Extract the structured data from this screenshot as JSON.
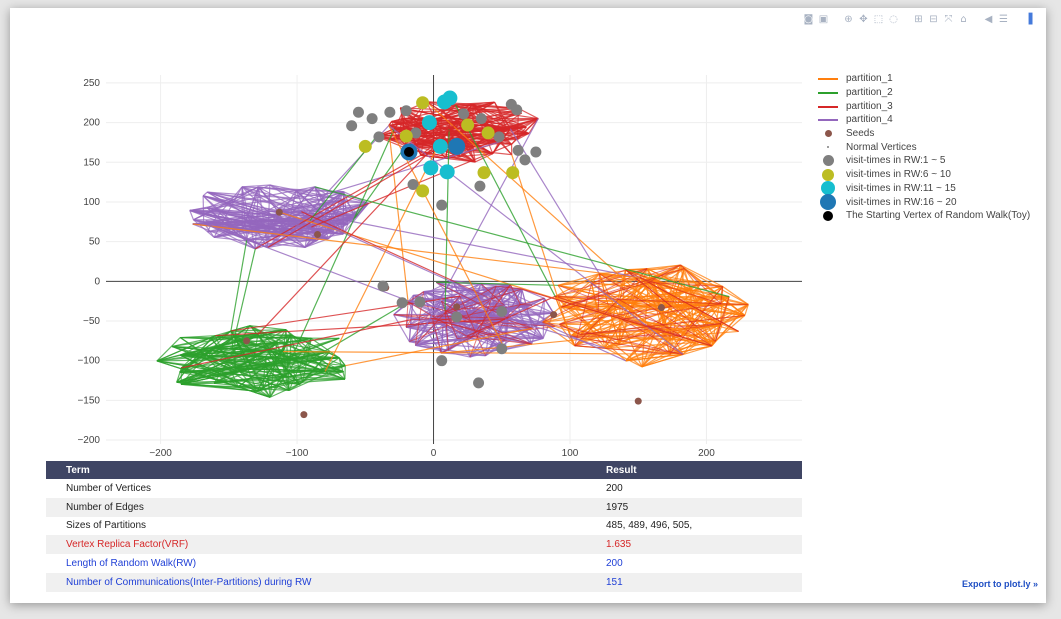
{
  "modebar": {
    "buttons": [
      "camera-icon",
      "save-icon",
      "zoom-icon",
      "pan-icon",
      "box-select-icon",
      "lasso-icon",
      "zoom-in-icon",
      "zoom-out-icon",
      "autoscale-icon",
      "home-icon",
      "spike-lines-icon",
      "hover-compare-icon",
      "plotly-logo-icon"
    ]
  },
  "chart_data": {
    "type": "scatter",
    "xlim": [
      -240,
      270
    ],
    "ylim": [
      -205,
      260
    ],
    "x_ticks": [
      -200,
      -100,
      0,
      100,
      200
    ],
    "y_ticks": [
      -200,
      -150,
      -100,
      -50,
      0,
      50,
      100,
      150,
      200,
      250
    ],
    "x_tick_labels": [
      "−200",
      "−100",
      "0",
      "100",
      "200"
    ],
    "y_tick_labels": [
      "−200",
      "−150",
      "−100",
      "−50",
      "0",
      "50",
      "100",
      "150",
      "200",
      "250"
    ],
    "grid": true,
    "legend_position": "right",
    "clusters": [
      {
        "name": "partition_3",
        "color": "#d62728",
        "cx": 18,
        "cy": 190,
        "rx": 60,
        "ry": 40
      },
      {
        "name": "partition_4",
        "color": "#9467bd",
        "cx": -115,
        "cy": 82,
        "rx": 70,
        "ry": 42
      },
      {
        "name": "partition_2",
        "color": "#2ca02c",
        "cx": -130,
        "cy": -100,
        "rx": 75,
        "ry": 45
      },
      {
        "name": "partition_4",
        "color": "#9467bd",
        "cx": 30,
        "cy": -45,
        "rx": 60,
        "ry": 50
      },
      {
        "name": "partition_1",
        "color": "#ff7f0e",
        "cx": 155,
        "cy": -40,
        "rx": 75,
        "ry": 65
      }
    ],
    "seeds": [
      [
        -113,
        87
      ],
      [
        -85,
        59
      ],
      [
        -137,
        -75
      ],
      [
        -95,
        -168
      ],
      [
        17,
        -32
      ],
      [
        -35,
        -8
      ],
      [
        88,
        -42
      ],
      [
        150,
        -151
      ],
      [
        167,
        -33
      ]
    ],
    "visit_1_5": [
      [
        -55,
        213
      ],
      [
        -60,
        196
      ],
      [
        -45,
        205
      ],
      [
        -32,
        213
      ],
      [
        -20,
        215
      ],
      [
        22,
        211
      ],
      [
        35,
        205
      ],
      [
        57,
        223
      ],
      [
        61,
        216
      ],
      [
        48,
        182
      ],
      [
        62,
        165
      ],
      [
        67,
        153
      ],
      [
        75,
        163
      ],
      [
        -40,
        182
      ],
      [
        -13,
        187
      ],
      [
        -15,
        122
      ],
      [
        34,
        120
      ],
      [
        6,
        96
      ],
      [
        -23,
        -27
      ],
      [
        17,
        -45
      ],
      [
        50,
        -38
      ],
      [
        50,
        -85
      ],
      [
        6,
        -100
      ],
      [
        33,
        -128
      ],
      [
        -37,
        -6
      ],
      [
        -10,
        -26
      ]
    ],
    "visit_6_10": [
      [
        -8,
        225
      ],
      [
        -50,
        170
      ],
      [
        -20,
        183
      ],
      [
        25,
        197
      ],
      [
        40,
        187
      ],
      [
        37,
        137
      ],
      [
        58,
        137
      ],
      [
        -8,
        114
      ]
    ],
    "visit_11_15": [
      [
        -3,
        200
      ],
      [
        8,
        226
      ],
      [
        12,
        231
      ],
      [
        5,
        170
      ],
      [
        -2,
        143
      ],
      [
        10,
        138
      ]
    ],
    "visit_16_20": [
      [
        -18,
        163
      ],
      [
        17,
        170
      ]
    ],
    "start_vertex": [
      -18,
      163
    ]
  },
  "legend": {
    "items": [
      {
        "label": "partition_1",
        "kind": "line",
        "color": "#ff7f0e"
      },
      {
        "label": "partition_2",
        "kind": "line",
        "color": "#2ca02c"
      },
      {
        "label": "partition_3",
        "kind": "line",
        "color": "#d62728"
      },
      {
        "label": "partition_4",
        "kind": "line",
        "color": "#9467bd"
      },
      {
        "label": "Seeds",
        "kind": "dot",
        "color": "#8c564b",
        "size": 7
      },
      {
        "label": "Normal Vertices",
        "kind": "dot",
        "color": "#7f7f7f",
        "size": 2
      },
      {
        "label": "visit-times in RW:1 ~ 5",
        "kind": "dot",
        "color": "#7f7f7f",
        "size": 11
      },
      {
        "label": "visit-times in RW:6 ~ 10",
        "kind": "dot",
        "color": "#bcbd22",
        "size": 12
      },
      {
        "label": "visit-times in RW:11 ~ 15",
        "kind": "dot",
        "color": "#17becf",
        "size": 14
      },
      {
        "label": "visit-times in RW:16 ~ 20",
        "kind": "dot",
        "color": "#1f77b4",
        "size": 16
      },
      {
        "label": "The Starting Vertex of Random Walk(Toy)",
        "kind": "dot",
        "color": "#000000",
        "size": 10
      }
    ]
  },
  "table": {
    "header": {
      "term": "Term",
      "result": "Result"
    },
    "rows": [
      {
        "term": "Number of Vertices",
        "result": "200",
        "style": "normal"
      },
      {
        "term": "Number of Edges",
        "result": "1975",
        "style": "normal"
      },
      {
        "term": "Sizes of Partitions",
        "result": "485, 489, 496, 505,",
        "style": "normal"
      },
      {
        "term": "Vertex Replica Factor(VRF)",
        "result": "1.635",
        "style": "red"
      },
      {
        "term": "Length of Random Walk(RW)",
        "result": "200",
        "style": "blue"
      },
      {
        "term": "Number of Communications(Inter-Partitions) during RW",
        "result": "151",
        "style": "blue"
      }
    ]
  },
  "export_link": "Export to plot.ly »"
}
